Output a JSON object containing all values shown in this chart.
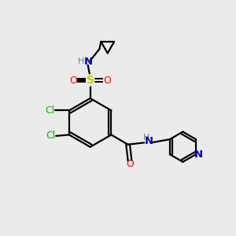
{
  "background_color": "#ebebeb",
  "atom_colors": {
    "C": "#000000",
    "H": "#708090",
    "N": "#0000cd",
    "O": "#ff0000",
    "S": "#cccc00",
    "Cl": "#00bb00"
  },
  "bond_color": "#000000",
  "figsize": [
    3.0,
    3.0
  ],
  "dpi": 100
}
